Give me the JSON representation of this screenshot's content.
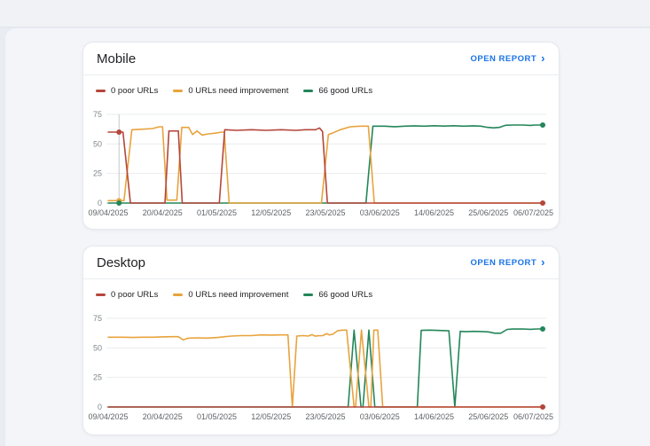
{
  "cards": [
    {
      "title": "Mobile",
      "open_report_label": "OPEN REPORT",
      "open_report_chevron": "›",
      "legend": [
        {
          "label": "0 poor URLs",
          "color": "#b5463b"
        },
        {
          "label": "0 URLs need improvement",
          "color": "#e8a33d"
        },
        {
          "label": "66 good URLs",
          "color": "#23865a"
        }
      ]
    },
    {
      "title": "Desktop",
      "open_report_label": "OPEN REPORT",
      "open_report_chevron": "›",
      "legend": [
        {
          "label": "0 poor URLs",
          "color": "#b5463b"
        },
        {
          "label": "0 URLs need improvement",
          "color": "#e8a33d"
        },
        {
          "label": "66 good URLs",
          "color": "#23865a"
        }
      ]
    }
  ],
  "chart_data": [
    {
      "type": "line",
      "title": "Mobile Core Web Vitals trend",
      "x_unit": "days since 09/04/2025",
      "x_range": [
        0,
        88
      ],
      "ylim": [
        0,
        75
      ],
      "yticks": [
        0,
        25,
        50,
        75
      ],
      "xtick_days": [
        0,
        11,
        22,
        33,
        44,
        55,
        66,
        77,
        88
      ],
      "xtick_labels": [
        "09/04/2025",
        "20/04/2025",
        "01/05/2025",
        "12/05/2025",
        "23/05/2025",
        "03/06/2025",
        "14/06/2025",
        "25/06/2025",
        "06/07/2025"
      ],
      "grid": "horizontal",
      "legend_position": "top",
      "series": [
        {
          "name": "0 poor URLs",
          "color": "#b5463b",
          "points": [
            [
              0,
              60
            ],
            [
              3,
              60
            ],
            [
              4.5,
              0
            ],
            [
              11.5,
              0
            ],
            [
              12.3,
              61
            ],
            [
              14.2,
              61
            ],
            [
              15,
              0
            ],
            [
              22.5,
              0
            ],
            [
              23.6,
              62
            ],
            [
              26,
              61.5
            ],
            [
              29,
              62
            ],
            [
              32,
              61.5
            ],
            [
              35,
              62
            ],
            [
              38,
              61.5
            ],
            [
              40,
              62
            ],
            [
              42,
              62
            ],
            [
              42.8,
              63.5
            ],
            [
              43.4,
              60.5
            ],
            [
              44.4,
              0
            ],
            [
              88,
              0
            ]
          ]
        },
        {
          "name": "0 URLs need improvement",
          "color": "#e8a33d",
          "points": [
            [
              0,
              2
            ],
            [
              3.2,
              2
            ],
            [
              4.8,
              62
            ],
            [
              7,
              62.5
            ],
            [
              9,
              63
            ],
            [
              10.3,
              64.5
            ],
            [
              11,
              64.5
            ],
            [
              11.9,
              2.5
            ],
            [
              13.9,
              2.5
            ],
            [
              14.9,
              64
            ],
            [
              16.3,
              64
            ],
            [
              17.1,
              58
            ],
            [
              18,
              61
            ],
            [
              19,
              57.5
            ],
            [
              20.3,
              58.5
            ],
            [
              21.5,
              59
            ],
            [
              23,
              60
            ],
            [
              23.5,
              60
            ],
            [
              24.5,
              0
            ],
            [
              43.2,
              0
            ],
            [
              44.6,
              58
            ],
            [
              45.6,
              59.5
            ],
            [
              47,
              62
            ],
            [
              49,
              64.5
            ],
            [
              51,
              65
            ],
            [
              52.7,
              65
            ],
            [
              53.9,
              0
            ],
            [
              88,
              0
            ]
          ]
        },
        {
          "name": "66 good URLs",
          "color": "#23865a",
          "points": [
            [
              0,
              0
            ],
            [
              52.2,
              0
            ],
            [
              53.6,
              65
            ],
            [
              56,
              65
            ],
            [
              58,
              64.6
            ],
            [
              60,
              65
            ],
            [
              62,
              65.3
            ],
            [
              64,
              65
            ],
            [
              66,
              65.4
            ],
            [
              68,
              65.1
            ],
            [
              70,
              65.4
            ],
            [
              72,
              65
            ],
            [
              74,
              65.3
            ],
            [
              75.5,
              65
            ],
            [
              76.5,
              64.2
            ],
            [
              78,
              63.6
            ],
            [
              79.2,
              64
            ],
            [
              80.5,
              65.8
            ],
            [
              82,
              66
            ],
            [
              84,
              66
            ],
            [
              85.5,
              65.7
            ],
            [
              86.5,
              66
            ],
            [
              88,
              66
            ]
          ]
        }
      ],
      "marker": {
        "day": 2.2,
        "dots": [
          {
            "series": 0,
            "value": 60
          },
          {
            "series": 1,
            "value": 2
          },
          {
            "series": 2,
            "value": 0
          }
        ]
      },
      "end_dots": [
        {
          "series": 0,
          "value": 0
        },
        {
          "series": 2,
          "value": 66
        }
      ]
    },
    {
      "type": "line",
      "title": "Desktop Core Web Vitals trend",
      "x_unit": "days since 09/04/2025",
      "x_range": [
        0,
        88
      ],
      "ylim": [
        0,
        75
      ],
      "yticks": [
        0,
        25,
        50,
        75
      ],
      "xtick_days": [
        0,
        11,
        22,
        33,
        44,
        55,
        66,
        77,
        88
      ],
      "xtick_labels": [
        "09/04/2025",
        "20/04/2025",
        "01/05/2025",
        "12/05/2025",
        "23/05/2025",
        "03/06/2025",
        "14/06/2025",
        "25/06/2025",
        "06/07/2025"
      ],
      "grid": "horizontal",
      "legend_position": "top",
      "series": [
        {
          "name": "0 poor URLs",
          "color": "#b5463b",
          "points": [
            [
              0,
              0
            ],
            [
              88,
              0
            ]
          ]
        },
        {
          "name": "0 URLs need improvement",
          "color": "#e8a33d",
          "points": [
            [
              0,
              59
            ],
            [
              3,
              59
            ],
            [
              5,
              58.8
            ],
            [
              7,
              59
            ],
            [
              9,
              59
            ],
            [
              11,
              59.3
            ],
            [
              13,
              59.5
            ],
            [
              14.2,
              59.5
            ],
            [
              15.2,
              56.8
            ],
            [
              16.2,
              58.2
            ],
            [
              18,
              58.5
            ],
            [
              20,
              58.3
            ],
            [
              22,
              58.7
            ],
            [
              24,
              59.6
            ],
            [
              25,
              60
            ],
            [
              27,
              60.4
            ],
            [
              29,
              60.4
            ],
            [
              31,
              61
            ],
            [
              33,
              60.8
            ],
            [
              35,
              61
            ],
            [
              36.4,
              61
            ],
            [
              37.3,
              0
            ],
            [
              38.2,
              60
            ],
            [
              39.5,
              60.4
            ],
            [
              40.5,
              60
            ],
            [
              41.3,
              61.2
            ],
            [
              41.9,
              59.9
            ],
            [
              42.5,
              60.2
            ],
            [
              43.5,
              60.4
            ],
            [
              44.2,
              62
            ],
            [
              44.8,
              61
            ],
            [
              45.5,
              61.6
            ],
            [
              46.5,
              64.6
            ],
            [
              47.5,
              65
            ],
            [
              48.3,
              65
            ],
            [
              49.8,
              0
            ],
            [
              50.1,
              0
            ],
            [
              51.3,
              65
            ],
            [
              52.8,
              0
            ],
            [
              53.2,
              0
            ],
            [
              53.8,
              65
            ],
            [
              54.6,
              65
            ],
            [
              55.6,
              0
            ],
            [
              88,
              0
            ]
          ]
        },
        {
          "name": "66 good URLs",
          "color": "#23865a",
          "points": [
            [
              0,
              0
            ],
            [
              48.6,
              0
            ],
            [
              49.8,
              65
            ],
            [
              51.2,
              0
            ],
            [
              51.6,
              0
            ],
            [
              52.8,
              65
            ],
            [
              54,
              0
            ],
            [
              62.6,
              0
            ],
            [
              63.4,
              64.8
            ],
            [
              65,
              65
            ],
            [
              66.5,
              64.8
            ],
            [
              68.3,
              64.6
            ],
            [
              69,
              64.5
            ],
            [
              70.2,
              0
            ],
            [
              71.3,
              64
            ],
            [
              72.5,
              63.7
            ],
            [
              74,
              64
            ],
            [
              75.5,
              63.8
            ],
            [
              77,
              63.5
            ],
            [
              78.3,
              62.4
            ],
            [
              79.5,
              62.4
            ],
            [
              80.8,
              65.6
            ],
            [
              82,
              65.9
            ],
            [
              84,
              66
            ],
            [
              85.5,
              65.7
            ],
            [
              86.8,
              66
            ],
            [
              88,
              66
            ]
          ]
        }
      ],
      "end_dots": [
        {
          "series": 0,
          "value": 0
        },
        {
          "series": 2,
          "value": 66
        }
      ]
    }
  ]
}
